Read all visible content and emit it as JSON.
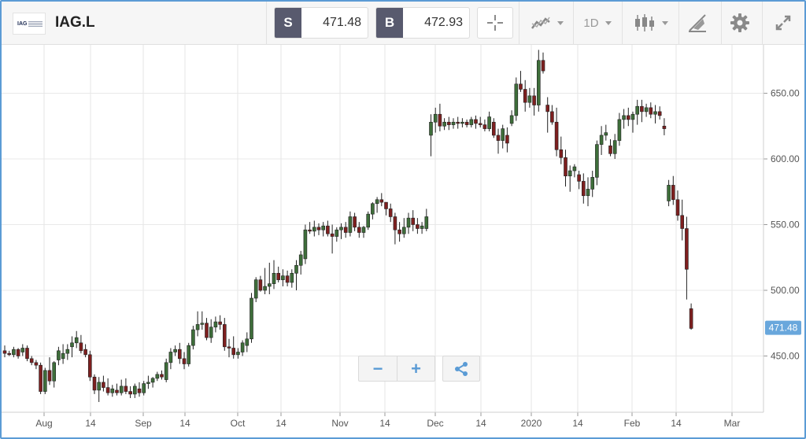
{
  "header": {
    "logo_text": "IAG",
    "ticker": "IAG.L",
    "sell": {
      "label": "S",
      "value": "471.48"
    },
    "buy": {
      "label": "B",
      "value": "472.93"
    },
    "timeframe": "1D"
  },
  "tools": {
    "crosshair_icon": "crosshair-icon",
    "indicators_icon": "indicators-icon",
    "chart_type_icon": "candlestick-icon",
    "draw_icon": "draw-icon",
    "settings_icon": "gear-icon",
    "fullscreen_icon": "expand-icon"
  },
  "zoom": {
    "minus": "−",
    "plus": "+"
  },
  "colors": {
    "up": "#3e6e3a",
    "down": "#7e1f1f",
    "accent": "#5a9bd5",
    "price_tag": "#69a7dc"
  },
  "chart_data": {
    "type": "candlestick",
    "y_axis": {
      "ticks": [
        650,
        600,
        550,
        500,
        450
      ],
      "labels": [
        "650.00",
        "600.00",
        "550.00",
        "500.00",
        "450.00"
      ]
    },
    "x_axis": {
      "labels": [
        "Aug",
        "14",
        "Sep",
        "14",
        "Oct",
        "14",
        "Nov",
        "14",
        "Dec",
        "14",
        "2020",
        "14",
        "Feb",
        "14",
        "Mar"
      ]
    },
    "last_price": 471.48,
    "last_price_label": "471.48",
    "grid": true,
    "candles": [
      [
        454,
        458,
        449,
        452
      ],
      [
        452,
        454,
        450,
        451
      ],
      [
        451,
        457,
        449,
        455
      ],
      [
        455,
        456,
        448,
        450
      ],
      [
        453,
        459,
        450,
        456
      ],
      [
        456,
        458,
        446,
        448
      ],
      [
        448,
        450,
        443,
        445
      ],
      [
        445,
        447,
        440,
        443
      ],
      [
        443,
        445,
        421,
        423
      ],
      [
        423,
        441,
        421,
        439
      ],
      [
        439,
        449,
        428,
        431
      ],
      [
        431,
        446,
        426,
        445
      ],
      [
        447,
        457,
        443,
        454
      ],
      [
        448,
        459,
        444,
        452
      ],
      [
        452,
        459,
        447,
        455
      ],
      [
        457,
        465,
        449,
        460
      ],
      [
        460,
        469,
        456,
        464
      ],
      [
        460,
        466,
        452,
        454
      ],
      [
        455,
        459,
        449,
        451
      ],
      [
        451,
        454,
        431,
        434
      ],
      [
        434,
        436,
        421,
        424
      ],
      [
        424,
        434,
        415,
        430
      ],
      [
        430,
        435,
        423,
        426
      ],
      [
        426,
        433,
        420,
        422
      ],
      [
        422,
        428,
        419,
        425
      ],
      [
        424,
        429,
        420,
        422
      ],
      [
        422,
        432,
        420,
        427
      ],
      [
        427,
        433,
        421,
        423
      ],
      [
        423,
        427,
        418,
        421
      ],
      [
        421,
        429,
        418,
        427
      ],
      [
        425,
        430,
        419,
        422
      ],
      [
        422,
        431,
        420,
        429
      ],
      [
        429,
        435,
        425,
        430
      ],
      [
        430,
        434,
        426,
        433
      ],
      [
        433,
        438,
        431,
        436
      ],
      [
        436,
        439,
        432,
        434
      ],
      [
        432,
        448,
        430,
        445
      ],
      [
        445,
        456,
        440,
        453
      ],
      [
        453,
        458,
        450,
        455
      ],
      [
        455,
        460,
        444,
        448
      ],
      [
        448,
        453,
        440,
        444
      ],
      [
        444,
        460,
        442,
        458
      ],
      [
        458,
        473,
        455,
        470
      ],
      [
        470,
        484,
        465,
        474
      ],
      [
        474,
        484,
        470,
        475
      ],
      [
        475,
        479,
        462,
        464
      ],
      [
        464,
        478,
        460,
        472
      ],
      [
        472,
        480,
        468,
        476
      ],
      [
        476,
        481,
        470,
        474
      ],
      [
        474,
        479,
        454,
        457
      ],
      [
        457,
        463,
        449,
        456
      ],
      [
        456,
        465,
        448,
        451
      ],
      [
        451,
        456,
        448,
        453
      ],
      [
        453,
        462,
        450,
        460
      ],
      [
        458,
        468,
        453,
        463
      ],
      [
        463,
        498,
        460,
        494
      ],
      [
        494,
        510,
        491,
        508
      ],
      [
        508,
        511,
        499,
        500
      ],
      [
        500,
        517,
        497,
        503
      ],
      [
        503,
        521,
        497,
        505
      ],
      [
        505,
        523,
        501,
        513
      ],
      [
        513,
        518,
        506,
        508
      ],
      [
        508,
        516,
        503,
        511
      ],
      [
        511,
        515,
        503,
        506
      ],
      [
        506,
        516,
        502,
        513
      ],
      [
        513,
        523,
        500,
        519
      ],
      [
        519,
        530,
        512,
        527
      ],
      [
        524,
        550,
        520,
        546
      ],
      [
        546,
        552,
        543,
        545
      ],
      [
        545,
        553,
        541,
        548
      ],
      [
        548,
        551,
        542,
        546
      ],
      [
        546,
        552,
        541,
        549
      ],
      [
        549,
        553,
        541,
        543
      ],
      [
        543,
        550,
        528,
        541
      ],
      [
        541,
        548,
        537,
        546
      ],
      [
        546,
        551,
        539,
        548
      ],
      [
        548,
        552,
        540,
        544
      ],
      [
        544,
        560,
        541,
        556
      ],
      [
        556,
        559,
        545,
        548
      ],
      [
        548,
        552,
        540,
        544
      ],
      [
        544,
        549,
        540,
        548
      ],
      [
        548,
        560,
        546,
        558
      ],
      [
        558,
        567,
        554,
        566
      ],
      [
        566,
        571,
        559,
        569
      ],
      [
        569,
        574,
        564,
        567
      ],
      [
        567,
        567,
        557,
        562
      ],
      [
        562,
        566,
        552,
        556
      ],
      [
        556,
        559,
        535,
        546
      ],
      [
        546,
        552,
        537,
        543
      ],
      [
        543,
        555,
        540,
        548
      ],
      [
        548,
        559,
        543,
        555
      ],
      [
        555,
        561,
        545,
        550
      ],
      [
        550,
        555,
        543,
        547
      ],
      [
        547,
        552,
        543,
        549
      ],
      [
        547,
        562,
        545,
        556
      ],
      [
        618,
        634,
        602,
        628
      ],
      [
        628,
        639,
        620,
        634
      ],
      [
        634,
        642,
        621,
        625
      ],
      [
        625,
        631,
        622,
        628
      ],
      [
        628,
        632,
        622,
        626
      ],
      [
        626,
        631,
        623,
        628
      ],
      [
        628,
        632,
        623,
        627
      ],
      [
        627,
        631,
        624,
        628
      ],
      [
        628,
        630,
        624,
        626
      ],
      [
        626,
        632,
        624,
        630
      ],
      [
        630,
        633,
        623,
        627
      ],
      [
        627,
        632,
        624,
        626
      ],
      [
        626,
        630,
        621,
        623
      ],
      [
        623,
        636,
        621,
        632
      ],
      [
        628,
        631,
        616,
        618
      ],
      [
        618,
        623,
        604,
        614
      ],
      [
        614,
        626,
        608,
        623
      ],
      [
        618,
        624,
        605,
        612
      ],
      [
        627,
        637,
        625,
        633
      ],
      [
        633,
        662,
        629,
        657
      ],
      [
        657,
        667,
        651,
        653
      ],
      [
        653,
        660,
        636,
        643
      ],
      [
        643,
        654,
        639,
        648
      ],
      [
        648,
        654,
        633,
        641
      ],
      [
        641,
        683,
        636,
        675
      ],
      [
        675,
        681,
        665,
        667
      ],
      [
        641,
        647,
        620,
        636
      ],
      [
        636,
        641,
        626,
        628
      ],
      [
        628,
        639,
        602,
        607
      ],
      [
        607,
        617,
        596,
        601
      ],
      [
        601,
        607,
        579,
        587
      ],
      [
        587,
        595,
        575,
        591
      ],
      [
        591,
        596,
        586,
        594
      ],
      [
        588,
        591,
        577,
        583
      ],
      [
        583,
        589,
        566,
        572
      ],
      [
        572,
        586,
        564,
        577
      ],
      [
        577,
        591,
        571,
        586
      ],
      [
        586,
        614,
        580,
        611
      ],
      [
        611,
        625,
        603,
        618
      ],
      [
        618,
        626,
        614,
        620
      ],
      [
        610,
        615,
        602,
        604
      ],
      [
        604,
        619,
        600,
        614
      ],
      [
        614,
        635,
        610,
        630
      ],
      [
        630,
        638,
        623,
        633
      ],
      [
        633,
        639,
        625,
        630
      ],
      [
        630,
        636,
        620,
        634
      ],
      [
        634,
        645,
        626,
        640
      ],
      [
        640,
        645,
        628,
        636
      ],
      [
        636,
        642,
        632,
        639
      ],
      [
        639,
        643,
        631,
        634
      ],
      [
        634,
        641,
        627,
        636
      ],
      [
        636,
        640,
        630,
        633
      ],
      [
        625,
        631,
        618,
        623
      ],
      [
        568,
        584,
        564,
        580
      ],
      [
        580,
        587,
        565,
        569
      ],
      [
        569,
        576,
        553,
        557
      ],
      [
        557,
        569,
        538,
        547
      ],
      [
        547,
        556,
        493,
        516
      ],
      [
        486,
        490,
        470,
        471
      ]
    ]
  }
}
